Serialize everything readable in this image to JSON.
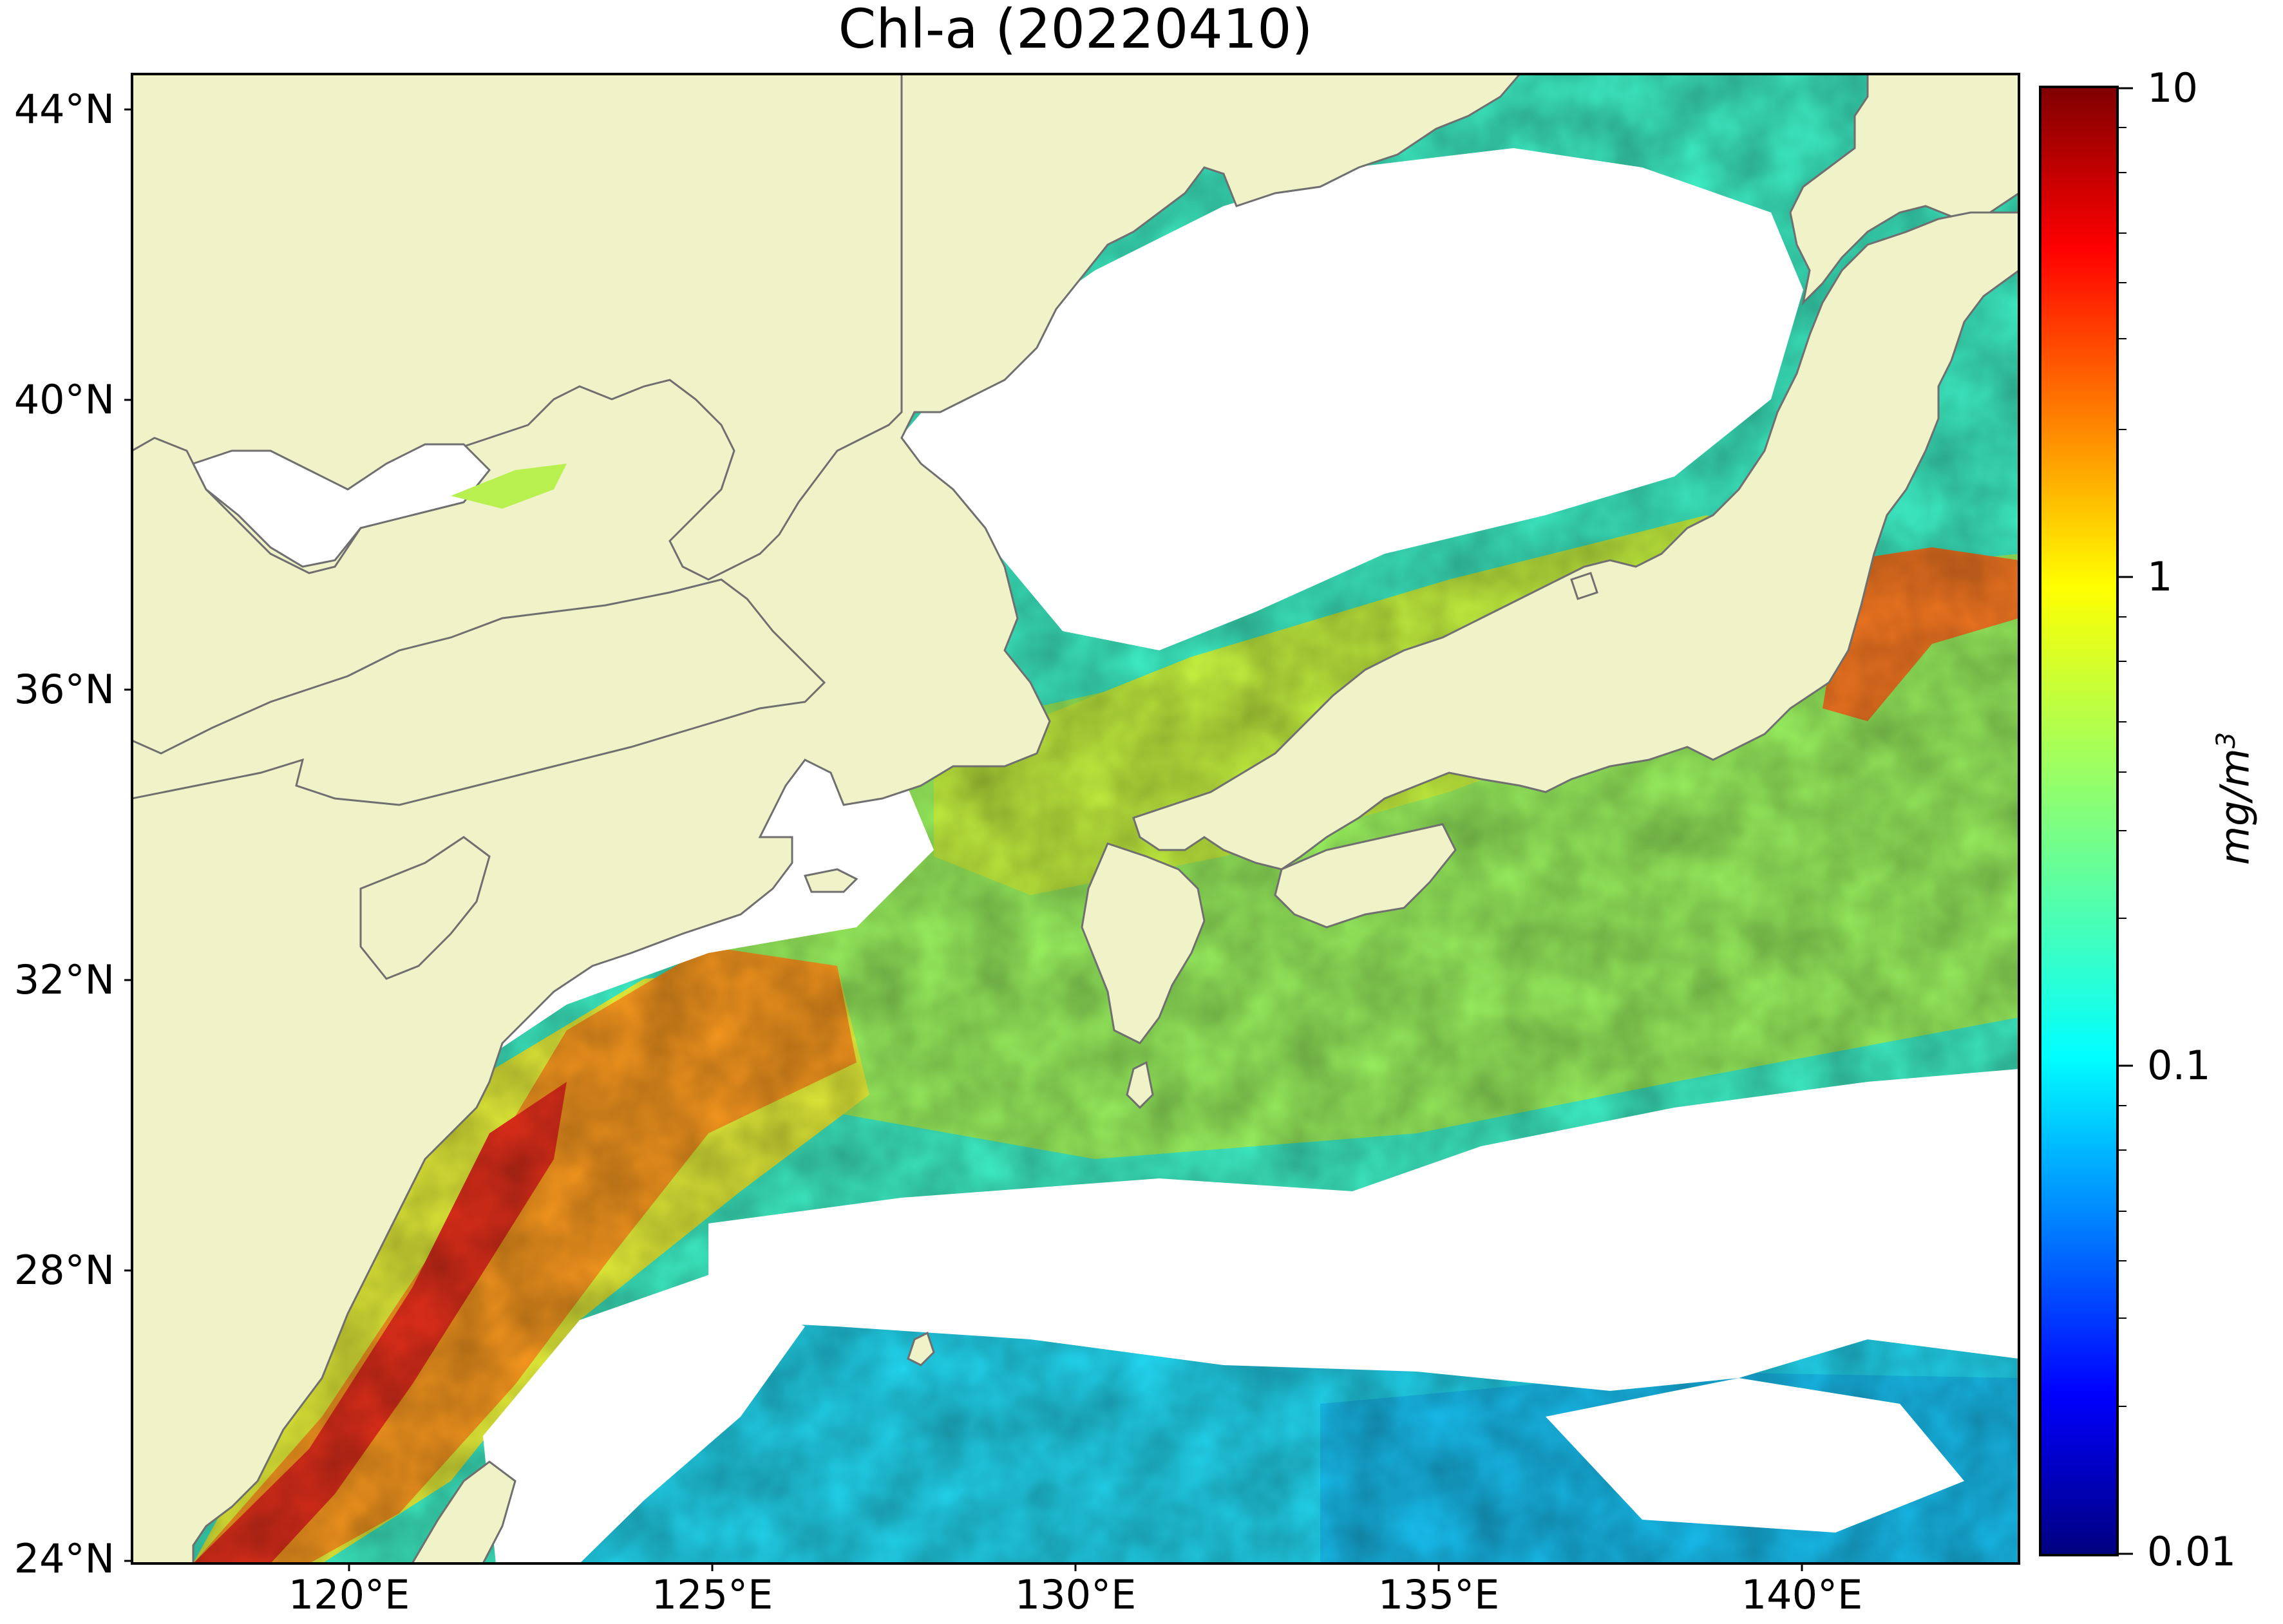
{
  "title": "Chl-a (20220410)",
  "map": {
    "lat_ticks": [
      "44°N",
      "40°N",
      "36°N",
      "32°N",
      "28°N",
      "24°N"
    ],
    "lon_ticks": [
      "120°E",
      "125°E",
      "130°E",
      "135°E",
      "140°E"
    ],
    "lat_range": [
      24,
      44.5
    ],
    "lon_range": [
      117,
      143
    ],
    "colors": {
      "land": "#f0f3c8",
      "cloud_no_data": "#ffffff",
      "coastline": "#6f6f6f"
    }
  },
  "colorbar": {
    "ticks": [
      "10",
      "1",
      "0.1",
      "0.01"
    ],
    "unit_main": "mg/m",
    "unit_exp": "3",
    "scale": "log",
    "range": [
      0.01,
      10
    ],
    "colormap": "jet"
  }
}
